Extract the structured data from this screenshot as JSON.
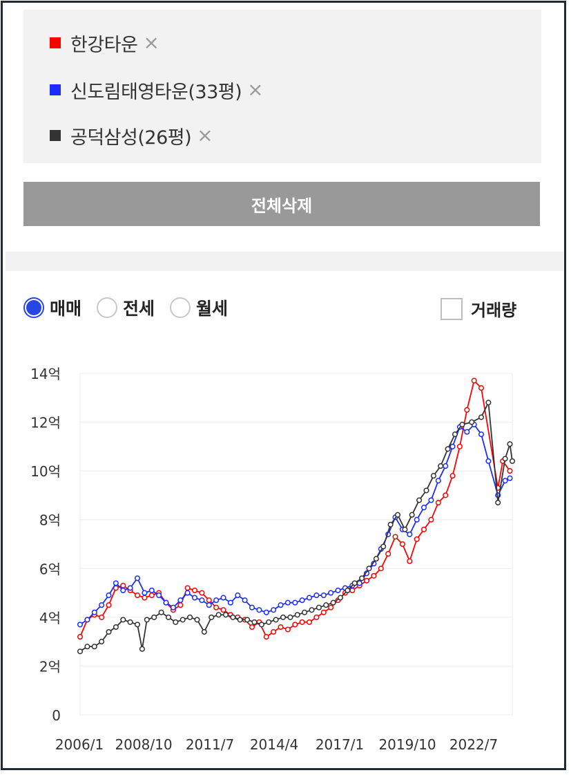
{
  "selected": [
    {
      "label": "한강타운",
      "color": "#ff0000",
      "remove": "×"
    },
    {
      "label": "신도림태영타운(33평)",
      "color": "#1a2cff",
      "remove": "×"
    },
    {
      "label": "공덕삼성(26평)",
      "color": "#333333",
      "remove": "×"
    }
  ],
  "delete_all_label": "전체삭제",
  "trade_types": [
    {
      "label": "매매",
      "selected": true
    },
    {
      "label": "전세",
      "selected": false
    },
    {
      "label": "월세",
      "selected": false
    }
  ],
  "volume": {
    "label": "거래량",
    "checked": false
  },
  "chart_data": {
    "type": "line",
    "title": "",
    "xlabel": "",
    "ylabel": "",
    "x_ticks": [
      "2006/1",
      "2008/10",
      "2011/7",
      "2014/4",
      "2017/1",
      "2019/10",
      "2022/7"
    ],
    "y_ticks": [
      "0",
      "2억",
      "4억",
      "6억",
      "8억",
      "10억",
      "12억",
      "14억"
    ],
    "ylim": [
      0,
      14
    ],
    "xlim": [
      2006.0,
      2024.1
    ],
    "grid": true,
    "series": [
      {
        "name": "한강타운",
        "color": "#ff0000",
        "points": [
          [
            2006.0,
            3.2
          ],
          [
            2006.3,
            3.9
          ],
          [
            2006.6,
            4.1
          ],
          [
            2006.9,
            4.0
          ],
          [
            2007.2,
            4.5
          ],
          [
            2007.5,
            5.2
          ],
          [
            2007.8,
            5.3
          ],
          [
            2008.1,
            5.1
          ],
          [
            2008.4,
            4.9
          ],
          [
            2008.7,
            4.8
          ],
          [
            2009.0,
            4.9
          ],
          [
            2009.3,
            5.0
          ],
          [
            2009.6,
            4.6
          ],
          [
            2009.9,
            4.3
          ],
          [
            2010.2,
            4.5
          ],
          [
            2010.5,
            5.2
          ],
          [
            2010.8,
            5.1
          ],
          [
            2011.1,
            5.0
          ],
          [
            2011.4,
            4.7
          ],
          [
            2011.7,
            4.4
          ],
          [
            2012.0,
            4.3
          ],
          [
            2012.3,
            4.1
          ],
          [
            2012.6,
            4.0
          ],
          [
            2012.9,
            3.9
          ],
          [
            2013.2,
            3.6
          ],
          [
            2013.5,
            3.8
          ],
          [
            2013.8,
            3.2
          ],
          [
            2014.1,
            3.4
          ],
          [
            2014.4,
            3.6
          ],
          [
            2014.7,
            3.5
          ],
          [
            2015.0,
            3.7
          ],
          [
            2015.3,
            3.8
          ],
          [
            2015.6,
            3.8
          ],
          [
            2015.9,
            4.0
          ],
          [
            2016.2,
            4.2
          ],
          [
            2016.5,
            4.4
          ],
          [
            2016.8,
            4.7
          ],
          [
            2017.1,
            5.0
          ],
          [
            2017.4,
            5.1
          ],
          [
            2017.7,
            5.3
          ],
          [
            2018.0,
            5.5
          ],
          [
            2018.3,
            5.7
          ],
          [
            2018.6,
            6.0
          ],
          [
            2018.9,
            6.6
          ],
          [
            2019.2,
            7.3
          ],
          [
            2019.5,
            7.0
          ],
          [
            2019.8,
            6.3
          ],
          [
            2020.1,
            7.2
          ],
          [
            2020.4,
            7.6
          ],
          [
            2020.7,
            8.0
          ],
          [
            2021.0,
            8.7
          ],
          [
            2021.3,
            9.0
          ],
          [
            2021.6,
            9.8
          ],
          [
            2021.9,
            11.0
          ],
          [
            2022.2,
            12.5
          ],
          [
            2022.5,
            13.7
          ],
          [
            2022.8,
            13.4
          ],
          [
            2023.5,
            9.3
          ],
          [
            2023.7,
            10.4
          ],
          [
            2024.0,
            10.0
          ]
        ]
      },
      {
        "name": "신도림태영타운(33평)",
        "color": "#1a2cff",
        "points": [
          [
            2006.0,
            3.7
          ],
          [
            2006.3,
            3.9
          ],
          [
            2006.6,
            4.2
          ],
          [
            2006.9,
            4.5
          ],
          [
            2007.2,
            4.9
          ],
          [
            2007.5,
            5.4
          ],
          [
            2007.8,
            5.1
          ],
          [
            2008.1,
            5.2
          ],
          [
            2008.4,
            5.6
          ],
          [
            2008.7,
            5.0
          ],
          [
            2009.0,
            5.1
          ],
          [
            2009.3,
            4.9
          ],
          [
            2009.6,
            4.6
          ],
          [
            2009.9,
            4.4
          ],
          [
            2010.2,
            4.7
          ],
          [
            2010.5,
            5.0
          ],
          [
            2010.8,
            4.8
          ],
          [
            2011.1,
            4.7
          ],
          [
            2011.4,
            4.5
          ],
          [
            2011.7,
            4.7
          ],
          [
            2012.0,
            4.8
          ],
          [
            2012.3,
            4.6
          ],
          [
            2012.6,
            4.9
          ],
          [
            2012.9,
            4.7
          ],
          [
            2013.2,
            4.4
          ],
          [
            2013.5,
            4.3
          ],
          [
            2013.8,
            4.2
          ],
          [
            2014.1,
            4.3
          ],
          [
            2014.4,
            4.5
          ],
          [
            2014.7,
            4.6
          ],
          [
            2015.0,
            4.6
          ],
          [
            2015.3,
            4.7
          ],
          [
            2015.6,
            4.8
          ],
          [
            2015.9,
            4.9
          ],
          [
            2016.2,
            4.9
          ],
          [
            2016.5,
            5.0
          ],
          [
            2016.8,
            5.1
          ],
          [
            2017.1,
            5.2
          ],
          [
            2017.4,
            5.3
          ],
          [
            2017.7,
            5.4
          ],
          [
            2018.0,
            5.8
          ],
          [
            2018.3,
            6.2
          ],
          [
            2018.6,
            6.8
          ],
          [
            2018.9,
            7.4
          ],
          [
            2019.2,
            8.1
          ],
          [
            2019.5,
            7.6
          ],
          [
            2019.8,
            7.4
          ],
          [
            2020.1,
            8.0
          ],
          [
            2020.4,
            8.5
          ],
          [
            2020.7,
            8.8
          ],
          [
            2021.0,
            9.6
          ],
          [
            2021.3,
            10.2
          ],
          [
            2021.6,
            11.0
          ],
          [
            2021.9,
            11.8
          ],
          [
            2022.2,
            11.6
          ],
          [
            2022.5,
            11.9
          ],
          [
            2022.8,
            11.5
          ],
          [
            2023.1,
            10.4
          ],
          [
            2023.5,
            9.0
          ],
          [
            2023.8,
            9.6
          ],
          [
            2024.0,
            9.7
          ]
        ]
      },
      {
        "name": "공덕삼성(26평)",
        "color": "#333333",
        "points": [
          [
            2006.0,
            2.6
          ],
          [
            2006.3,
            2.8
          ],
          [
            2006.6,
            2.8
          ],
          [
            2006.9,
            3.0
          ],
          [
            2007.2,
            3.4
          ],
          [
            2007.5,
            3.6
          ],
          [
            2007.8,
            3.9
          ],
          [
            2008.1,
            3.8
          ],
          [
            2008.4,
            3.7
          ],
          [
            2008.6,
            2.7
          ],
          [
            2008.8,
            3.9
          ],
          [
            2009.1,
            4.0
          ],
          [
            2009.4,
            4.2
          ],
          [
            2009.7,
            4.0
          ],
          [
            2010.0,
            3.8
          ],
          [
            2010.3,
            3.9
          ],
          [
            2010.6,
            4.0
          ],
          [
            2010.9,
            3.9
          ],
          [
            2011.2,
            3.4
          ],
          [
            2011.5,
            4.0
          ],
          [
            2011.8,
            4.1
          ],
          [
            2012.1,
            4.1
          ],
          [
            2012.4,
            4.0
          ],
          [
            2012.7,
            3.9
          ],
          [
            2013.0,
            3.9
          ],
          [
            2013.3,
            3.8
          ],
          [
            2013.6,
            3.7
          ],
          [
            2013.9,
            3.8
          ],
          [
            2014.2,
            3.9
          ],
          [
            2014.5,
            4.0
          ],
          [
            2014.8,
            4.0
          ],
          [
            2015.1,
            4.1
          ],
          [
            2015.4,
            4.2
          ],
          [
            2015.7,
            4.3
          ],
          [
            2016.0,
            4.4
          ],
          [
            2016.3,
            4.5
          ],
          [
            2016.6,
            4.6
          ],
          [
            2016.9,
            4.8
          ],
          [
            2017.2,
            5.1
          ],
          [
            2017.5,
            5.4
          ],
          [
            2017.8,
            5.6
          ],
          [
            2018.1,
            6.0
          ],
          [
            2018.4,
            6.4
          ],
          [
            2018.7,
            6.9
          ],
          [
            2019.0,
            7.8
          ],
          [
            2019.3,
            8.2
          ],
          [
            2019.6,
            7.6
          ],
          [
            2019.9,
            8.2
          ],
          [
            2020.2,
            8.8
          ],
          [
            2020.5,
            9.2
          ],
          [
            2020.8,
            9.8
          ],
          [
            2021.1,
            10.2
          ],
          [
            2021.4,
            10.9
          ],
          [
            2021.7,
            11.5
          ],
          [
            2022.0,
            11.9
          ],
          [
            2022.4,
            12.0
          ],
          [
            2022.8,
            12.2
          ],
          [
            2023.1,
            12.8
          ],
          [
            2023.5,
            8.7
          ],
          [
            2023.8,
            10.5
          ],
          [
            2024.0,
            11.1
          ],
          [
            2024.1,
            10.4
          ]
        ]
      }
    ]
  }
}
